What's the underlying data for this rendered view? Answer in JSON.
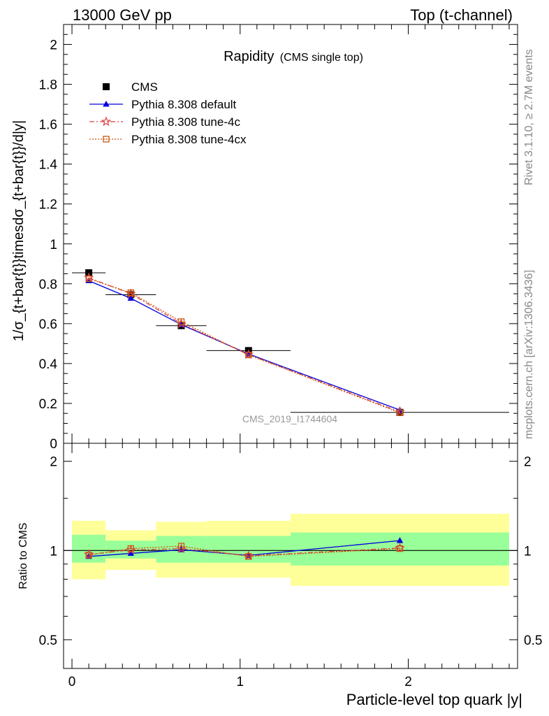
{
  "header": {
    "left": "13000 GeV pp",
    "right": "Top (t-channel)"
  },
  "side_labels": {
    "rivet": "Rivet 3.1.10, ≥ 2.7M events",
    "mcplots": "mcplots.cern.ch [arXiv:1306.3436]"
  },
  "chart_data": [
    {
      "type": "line",
      "title": "Rapidity",
      "subtitle": "(CMS single top)",
      "watermark": "CMS_2019_I1744604",
      "ylabel": "1/σ_{t+bar{t}}timesdσ_{t+bar{t}}/d|y|",
      "xlabel": "",
      "xlim": [
        -0.05,
        2.65
      ],
      "ylim": [
        0,
        2.1
      ],
      "y_ticks": [
        "0",
        "0.2",
        "0.4",
        "0.6",
        "0.8",
        "1",
        "1.2",
        "1.4",
        "1.6",
        "1.8",
        "2"
      ],
      "grid": false,
      "legend_position": "top-left",
      "series": [
        {
          "name": "CMS",
          "style": "data",
          "color": "#000000",
          "marker": "square",
          "x": [
            0.1,
            0.35,
            0.65,
            1.05,
            1.95
          ],
          "values": [
            0.855,
            0.745,
            0.59,
            0.465,
            0.155
          ],
          "x_err": [
            0.1,
            0.15,
            0.15,
            0.25,
            0.65
          ]
        },
        {
          "name": "Pythia 8.308 default",
          "style": "solid",
          "color": "#0000dd",
          "marker": "triangle",
          "x": [
            0.1,
            0.35,
            0.65,
            1.05,
            1.95
          ],
          "values": [
            0.815,
            0.727,
            0.595,
            0.448,
            0.167
          ]
        },
        {
          "name": "Pythia 8.308 tune-4c",
          "style": "dashdot",
          "color": "#dd4444",
          "marker": "star",
          "x": [
            0.1,
            0.35,
            0.65,
            1.05,
            1.95
          ],
          "values": [
            0.83,
            0.75,
            0.6,
            0.445,
            0.158
          ]
        },
        {
          "name": "Pythia 8.308 tune-4cx",
          "style": "dotted",
          "color": "#cc5511",
          "marker": "open-square",
          "x": [
            0.1,
            0.35,
            0.65,
            1.05,
            1.95
          ],
          "values": [
            0.825,
            0.755,
            0.61,
            0.443,
            0.153
          ]
        }
      ]
    },
    {
      "type": "line",
      "title": "",
      "xlabel": "Particle-level top quark |y|",
      "ylabel": "Ratio to CMS",
      "xlim": [
        -0.05,
        2.65
      ],
      "ylim": [
        0.4,
        2.3
      ],
      "y_scale": "log",
      "x_ticks": [
        "0",
        "1",
        "2"
      ],
      "y_ticks": [
        "0.5",
        "1",
        "2"
      ],
      "reference_line": 1,
      "uncertainty_bands": {
        "bins": [
          [
            0.0,
            0.2
          ],
          [
            0.2,
            0.5
          ],
          [
            0.5,
            0.8
          ],
          [
            0.8,
            1.3
          ],
          [
            1.3,
            2.6
          ]
        ],
        "inner": [
          [
            0.91,
            1.13
          ],
          [
            0.94,
            1.08
          ],
          [
            0.91,
            1.12
          ],
          [
            0.91,
            1.12
          ],
          [
            0.89,
            1.15
          ]
        ],
        "outer": [
          [
            0.8,
            1.26
          ],
          [
            0.86,
            1.17
          ],
          [
            0.81,
            1.25
          ],
          [
            0.81,
            1.26
          ],
          [
            0.76,
            1.33
          ]
        ],
        "inner_color": "#99ff99",
        "outer_color": "#ffff99"
      },
      "series": [
        {
          "name": "Pythia 8.308 default",
          "color": "#0000dd",
          "marker": "triangle",
          "style": "solid",
          "x": [
            0.1,
            0.35,
            0.65,
            1.05,
            1.95
          ],
          "values": [
            0.955,
            0.978,
            1.006,
            0.963,
            1.08
          ]
        },
        {
          "name": "Pythia 8.308 tune-4c",
          "color": "#dd4444",
          "marker": "star",
          "style": "dashdot",
          "x": [
            0.1,
            0.35,
            0.65,
            1.05,
            1.95
          ],
          "values": [
            0.97,
            1.005,
            1.015,
            0.96,
            1.02
          ]
        },
        {
          "name": "Pythia 8.308 tune-4cx",
          "color": "#cc5511",
          "marker": "open-square",
          "style": "dotted",
          "x": [
            0.1,
            0.35,
            0.65,
            1.05,
            1.95
          ],
          "values": [
            0.965,
            1.015,
            1.035,
            0.955,
            1.015
          ]
        }
      ]
    }
  ]
}
